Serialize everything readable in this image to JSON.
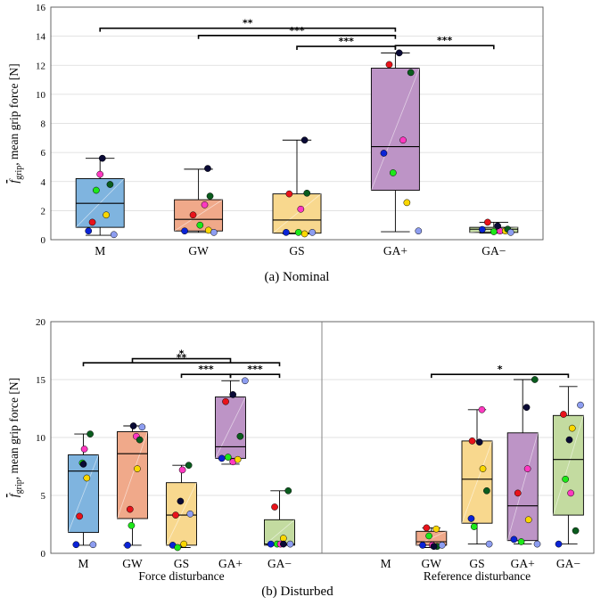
{
  "colors": {
    "M": "#7fb4df",
    "GW": "#f0a98a",
    "GS": "#f8d88e",
    "GA+": "#bd94c6",
    "GA-": "#c3dba0",
    "participants": [
      "#0a23d6",
      "#e8131b",
      "#1ee81a",
      "#ff39c0",
      "#fad700",
      "#0a5c1e",
      "#0a0a35",
      "#8d9df0"
    ]
  },
  "chart_data": [
    {
      "type": "box",
      "caption": "(a) Nominal",
      "ylabel_main": "f",
      "ylabel_sub": "grip",
      "ylabel_rest": ", mean grip force [N]",
      "ylim": [
        0,
        16
      ],
      "yticks": [
        "0",
        "2",
        "4",
        "6",
        "8",
        "10",
        "12",
        "14",
        "16"
      ],
      "grid": true,
      "categories": [
        "M",
        "GW",
        "GS",
        "GA+",
        "GA−"
      ],
      "boxes": [
        {
          "category": "M",
          "q1": 0.85,
          "median": 2.5,
          "q3": 4.2,
          "whisker_low": 0.3,
          "whisker_high": 5.6,
          "points": [
            [
              -0.15,
              0.6
            ],
            [
              -0.1,
              1.2
            ],
            [
              -0.05,
              3.4
            ],
            [
              0.0,
              4.5
            ],
            [
              0.08,
              1.7
            ],
            [
              0.13,
              3.8
            ],
            [
              0.03,
              5.6
            ],
            [
              0.18,
              0.35
            ]
          ]
        },
        {
          "category": "GW",
          "q1": 0.6,
          "median": 1.4,
          "q3": 2.75,
          "whisker_low": 0.5,
          "whisker_high": 4.85,
          "points": [
            [
              -0.18,
              0.6
            ],
            [
              -0.07,
              1.7
            ],
            [
              0.02,
              1.0
            ],
            [
              0.08,
              2.4
            ],
            [
              0.13,
              0.65
            ],
            [
              0.15,
              3.0
            ],
            [
              0.12,
              4.9
            ],
            [
              0.2,
              0.5
            ]
          ]
        },
        {
          "category": "GS",
          "q1": 0.45,
          "median": 1.35,
          "q3": 3.15,
          "whisker_low": 0.4,
          "whisker_high": 6.85,
          "points": [
            [
              -0.14,
              0.5
            ],
            [
              -0.1,
              3.15
            ],
            [
              0.02,
              0.5
            ],
            [
              0.05,
              2.1
            ],
            [
              0.1,
              0.4
            ],
            [
              0.13,
              3.2
            ],
            [
              0.1,
              6.85
            ],
            [
              0.2,
              0.5
            ]
          ]
        },
        {
          "category": "GA+",
          "q1": 3.4,
          "median": 6.4,
          "q3": 11.8,
          "whisker_low": 0.55,
          "whisker_high": 12.85,
          "points": [
            [
              -0.15,
              5.95
            ],
            [
              -0.08,
              12.05
            ],
            [
              -0.03,
              4.6
            ],
            [
              0.1,
              6.85
            ],
            [
              0.15,
              2.55
            ],
            [
              0.2,
              11.5
            ],
            [
              0.05,
              12.85
            ],
            [
              0.3,
              0.6
            ]
          ]
        },
        {
          "category": "GA−",
          "q1": 0.5,
          "median": 0.72,
          "q3": 0.85,
          "whisker_low": 0.45,
          "whisker_high": 1.2,
          "points": [
            [
              -0.15,
              0.7
            ],
            [
              -0.08,
              1.2
            ],
            [
              0.0,
              0.55
            ],
            [
              0.08,
              0.6
            ],
            [
              0.15,
              0.6
            ],
            [
              0.18,
              0.72
            ],
            [
              0.05,
              0.95
            ],
            [
              0.22,
              0.5
            ]
          ]
        }
      ],
      "significance": [
        {
          "from": "M",
          "to": "GA+",
          "y": 14.55,
          "stars": "**"
        },
        {
          "from": "GW",
          "to": "GA+",
          "y": 14.05,
          "stars": "***"
        },
        {
          "from": "GS",
          "to": "GA+",
          "y": 13.3,
          "stars": "***"
        },
        {
          "from": "GA+",
          "to": "GA−",
          "y": 13.35,
          "stars": "***"
        }
      ]
    },
    {
      "type": "box",
      "caption": "(b) Disturbed",
      "ylabel_main": "f",
      "ylabel_sub": "grip",
      "ylabel_rest": ", mean grip force [N]",
      "ylim": [
        0,
        20
      ],
      "yticks": [
        "0",
        "5",
        "10",
        "15",
        "20"
      ],
      "grid": true,
      "groups": [
        {
          "label": "Force disturbance",
          "categories": [
            "M",
            "GW",
            "GS",
            "GA+",
            "GA−"
          ],
          "boxes": [
            {
              "category": "M",
              "q1": 1.8,
              "median": 7.1,
              "q3": 8.5,
              "whisker_low": 0.7,
              "whisker_high": 10.3,
              "points": [
                [
                  -0.15,
                  0.75
                ],
                [
                  -0.08,
                  3.2
                ],
                [
                  -0.02,
                  7.8
                ],
                [
                  0.02,
                  9.0
                ],
                [
                  0.07,
                  6.5
                ],
                [
                  0.14,
                  10.3
                ],
                [
                  0.0,
                  7.7
                ],
                [
                  0.2,
                  0.75
                ]
              ]
            },
            {
              "category": "GW",
              "q1": 3.0,
              "median": 8.6,
              "q3": 10.5,
              "whisker_low": 0.7,
              "whisker_high": 11.0,
              "points": [
                [
                  -0.1,
                  0.7
                ],
                [
                  -0.05,
                  3.8
                ],
                [
                  -0.02,
                  2.4
                ],
                [
                  0.08,
                  10.1
                ],
                [
                  0.1,
                  7.3
                ],
                [
                  0.15,
                  9.8
                ],
                [
                  0.02,
                  11.0
                ],
                [
                  0.2,
                  10.9
                ]
              ]
            },
            {
              "category": "GS",
              "q1": 0.7,
              "median": 3.3,
              "q3": 6.1,
              "whisker_low": 0.5,
              "whisker_high": 7.6,
              "points": [
                [
                  -0.18,
                  0.7
                ],
                [
                  -0.12,
                  3.3
                ],
                [
                  -0.08,
                  0.5
                ],
                [
                  0.02,
                  7.2
                ],
                [
                  0.05,
                  0.8
                ],
                [
                  0.15,
                  7.6
                ],
                [
                  -0.02,
                  4.5
                ],
                [
                  0.18,
                  3.4
                ]
              ]
            },
            {
              "category": "GA+",
              "q1": 8.2,
              "median": 9.2,
              "q3": 13.5,
              "whisker_low": 7.7,
              "whisker_high": 14.9,
              "points": [
                [
                  -0.18,
                  8.2
                ],
                [
                  -0.1,
                  13.1
                ],
                [
                  -0.05,
                  8.3
                ],
                [
                  0.05,
                  7.9
                ],
                [
                  0.15,
                  8.1
                ],
                [
                  0.2,
                  10.1
                ],
                [
                  0.05,
                  13.7
                ],
                [
                  0.3,
                  14.9
                ]
              ]
            },
            {
              "category": "GA−",
              "q1": 0.7,
              "median": 0.8,
              "q3": 2.9,
              "whisker_low": 0.7,
              "whisker_high": 5.4,
              "points": [
                [
                  -0.18,
                  0.8
                ],
                [
                  -0.1,
                  4.0
                ],
                [
                  -0.05,
                  0.8
                ],
                [
                  0.02,
                  0.8
                ],
                [
                  0.08,
                  1.3
                ],
                [
                  0.18,
                  5.4
                ],
                [
                  0.08,
                  0.8
                ],
                [
                  0.22,
                  0.8
                ]
              ]
            }
          ]
        },
        {
          "label": "Reference disturbance",
          "categories": [
            "M",
            "GW",
            "GS",
            "GA+",
            "GA−"
          ],
          "boxes": [
            {
              "category": "GW",
              "q1": 0.7,
              "median": 1.0,
              "q3": 1.9,
              "whisker_low": 0.5,
              "whisker_high": 2.2,
              "points": [
                [
                  -0.18,
                  0.7
                ],
                [
                  -0.1,
                  2.2
                ],
                [
                  -0.05,
                  1.5
                ],
                [
                  0.02,
                  0.7
                ],
                [
                  0.1,
                  2.1
                ],
                [
                  0.12,
                  0.6
                ],
                [
                  0.05,
                  0.6
                ],
                [
                  0.22,
                  0.7
                ]
              ]
            },
            {
              "category": "GS",
              "q1": 2.6,
              "median": 6.4,
              "q3": 9.7,
              "whisker_low": 0.8,
              "whisker_high": 12.4,
              "points": [
                [
                  -0.12,
                  3.0
                ],
                [
                  -0.1,
                  9.7
                ],
                [
                  -0.06,
                  2.3
                ],
                [
                  0.1,
                  12.4
                ],
                [
                  0.12,
                  7.3
                ],
                [
                  0.2,
                  5.4
                ],
                [
                  0.05,
                  9.6
                ],
                [
                  0.25,
                  0.8
                ]
              ]
            },
            {
              "category": "GA+",
              "q1": 1.1,
              "median": 4.1,
              "q3": 10.4,
              "whisker_low": 0.8,
              "whisker_high": 15.0,
              "points": [
                [
                  -0.18,
                  1.2
                ],
                [
                  -0.1,
                  5.2
                ],
                [
                  -0.03,
                  1.0
                ],
                [
                  0.1,
                  7.3
                ],
                [
                  0.12,
                  2.9
                ],
                [
                  0.25,
                  15.0
                ],
                [
                  0.08,
                  12.6
                ],
                [
                  0.3,
                  0.8
                ]
              ]
            },
            {
              "category": "GA−",
              "q1": 3.3,
              "median": 8.1,
              "q3": 11.9,
              "whisker_low": 0.8,
              "whisker_high": 14.4,
              "points": [
                [
                  -0.2,
                  0.8
                ],
                [
                  -0.1,
                  12.0
                ],
                [
                  -0.06,
                  6.4
                ],
                [
                  0.05,
                  5.2
                ],
                [
                  0.08,
                  10.8
                ],
                [
                  0.15,
                  1.95
                ],
                [
                  0.02,
                  9.8
                ],
                [
                  0.25,
                  12.8
                ]
              ]
            }
          ]
        }
      ],
      "significance": [
        {
          "group": 0,
          "from": "M",
          "to": "GA−",
          "y": 16.45,
          "stars": "**"
        },
        {
          "group": 0,
          "from": "GW",
          "to": "GA+",
          "y": 16.8,
          "stars": "*"
        },
        {
          "group": 0,
          "from": "GS",
          "to": "GA+",
          "y": 15.45,
          "stars": "***"
        },
        {
          "group": 0,
          "from": "GA+",
          "to": "GA−",
          "y": 15.45,
          "stars": "***"
        },
        {
          "group": 1,
          "from": "GW",
          "to": "GA−",
          "y": 15.45,
          "stars": "*"
        }
      ]
    }
  ]
}
